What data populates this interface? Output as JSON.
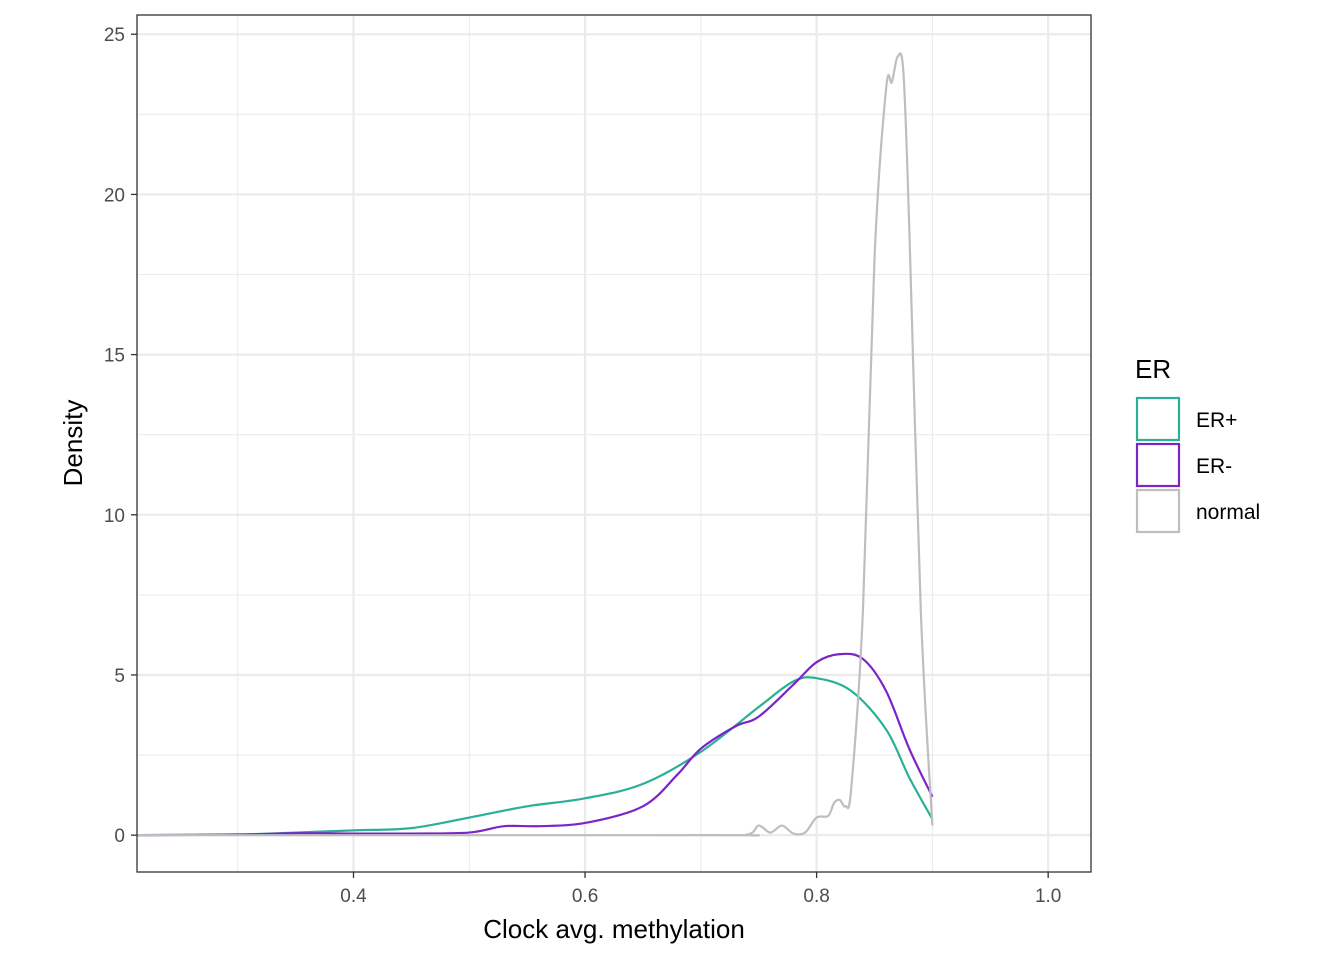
{
  "chart_data": {
    "type": "line",
    "title": "",
    "xlabel": "Clock avg. methylation",
    "ylabel": "Density",
    "xlim": [
      0.213,
      1.037
    ],
    "ylim": [
      -1.15,
      25.6
    ],
    "x_ticks": [
      0.4,
      0.6,
      0.8,
      1.0
    ],
    "x_tick_labels": [
      "0.4",
      "0.6",
      "0.8",
      "1.0"
    ],
    "x_minor_ticks": [
      0.3,
      0.5,
      0.7,
      0.9
    ],
    "y_ticks": [
      0,
      5,
      10,
      15,
      20,
      25
    ],
    "y_tick_labels": [
      "0",
      "5",
      "10",
      "15",
      "20",
      "25"
    ],
    "y_minor_ticks": [
      2.5,
      7.5,
      12.5,
      17.5,
      22.5
    ],
    "grid": true,
    "legend": {
      "title": "ER",
      "placement": "right",
      "entries": [
        "ER+",
        "ER-",
        "normal"
      ]
    },
    "series": [
      {
        "name": "ER+",
        "color": "#2bb095",
        "x": [
          0.213,
          0.3,
          0.35,
          0.4,
          0.45,
          0.5,
          0.55,
          0.6,
          0.65,
          0.7,
          0.75,
          0.78,
          0.8,
          0.83,
          0.86,
          0.88,
          0.9
        ],
        "y": [
          0.0,
          0.02,
          0.08,
          0.15,
          0.22,
          0.55,
          0.9,
          1.15,
          1.6,
          2.6,
          4.0,
          4.8,
          4.9,
          4.5,
          3.3,
          1.8,
          0.5
        ]
      },
      {
        "name": "ER-",
        "color": "#7b25c8",
        "x": [
          0.213,
          0.3,
          0.35,
          0.4,
          0.45,
          0.5,
          0.53,
          0.56,
          0.6,
          0.65,
          0.68,
          0.7,
          0.73,
          0.75,
          0.78,
          0.8,
          0.82,
          0.84,
          0.86,
          0.88,
          0.9
        ],
        "y": [
          0.0,
          0.02,
          0.06,
          0.05,
          0.05,
          0.08,
          0.28,
          0.28,
          0.38,
          0.9,
          1.9,
          2.7,
          3.4,
          3.7,
          4.7,
          5.4,
          5.65,
          5.5,
          4.5,
          2.7,
          1.2
        ]
      },
      {
        "name": "normal",
        "color": "#bebebe",
        "x": [
          0.213,
          0.7,
          0.74,
          0.75,
          0.76,
          0.77,
          0.78,
          0.79,
          0.8,
          0.81,
          0.815,
          0.82,
          0.825,
          0.83,
          0.84,
          0.85,
          0.86,
          0.865,
          0.87,
          0.875,
          0.88,
          0.89,
          0.9
        ],
        "y": [
          0.0,
          0.0,
          0.02,
          0.3,
          0.08,
          0.3,
          0.05,
          0.08,
          0.55,
          0.6,
          1.0,
          1.1,
          0.9,
          1.5,
          7.0,
          18.0,
          23.3,
          23.5,
          24.3,
          23.8,
          19.0,
          7.0,
          0.3
        ]
      }
    ]
  }
}
